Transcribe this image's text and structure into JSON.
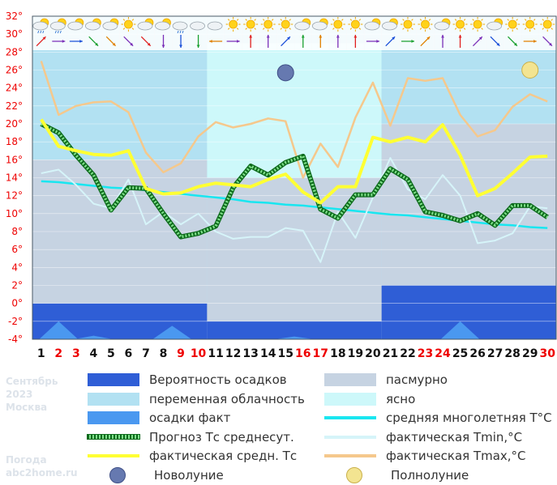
{
  "chart_data": {
    "type": "line",
    "x": [
      1,
      2,
      3,
      4,
      5,
      6,
      7,
      8,
      9,
      10,
      11,
      12,
      13,
      14,
      15,
      16,
      17,
      18,
      19,
      20,
      21,
      22,
      23,
      24,
      25,
      26,
      27,
      28,
      29,
      30
    ],
    "x_red_days": [
      2,
      3,
      9,
      10,
      16,
      17,
      23,
      24,
      30
    ],
    "ylim": [
      -4,
      32
    ],
    "y_ticks": [
      "-4°",
      "-2°",
      "0°",
      "2°",
      "4°",
      "6°",
      "8°",
      "10°",
      "12°",
      "14°",
      "16°",
      "18°",
      "20°",
      "22°",
      "24°",
      "26°",
      "28°",
      "30°",
      "32°"
    ],
    "cloud_bands": [
      {
        "from": 1,
        "to": 10,
        "level_top": 29,
        "kind": "переменная облачность"
      },
      {
        "from": 11,
        "to": 20,
        "level_top": 29,
        "kind": "ясно"
      },
      {
        "from": 21,
        "to": 30,
        "level_top": 29,
        "kind": "переменная облачность"
      }
    ],
    "overcast_bands": [
      {
        "from": 1,
        "to": 10,
        "level_top": 16
      },
      {
        "from": 11,
        "to": 20,
        "level_top": 14
      },
      {
        "from": 21,
        "to": 30,
        "level_top": 20
      }
    ],
    "precip_probability_bands": [
      {
        "from": 1,
        "to": 10,
        "value": 0
      },
      {
        "from": 11,
        "to": 20,
        "value": -2
      },
      {
        "from": 21,
        "to": 30,
        "value": 2
      }
    ],
    "precip_fact_peaks": [
      {
        "day": 2,
        "value": -2.0
      },
      {
        "day": 4,
        "value": -3.6
      },
      {
        "day": 8.5,
        "value": -2.5
      },
      {
        "day": 15.5,
        "value": -3.7
      },
      {
        "day": 25,
        "value": -2.0
      }
    ],
    "series": [
      {
        "name": "средняя многолетняя T°C",
        "color": "#19e6f0",
        "values": [
          13.6,
          13.5,
          13.3,
          13.1,
          12.9,
          12.8,
          12.6,
          12.4,
          12.2,
          12.0,
          11.8,
          11.6,
          11.3,
          11.2,
          11.0,
          10.9,
          10.7,
          10.5,
          10.3,
          10.1,
          9.9,
          9.8,
          9.6,
          9.4,
          9.2,
          9.0,
          8.8,
          8.7,
          8.5,
          8.4
        ]
      },
      {
        "name": "фактическая Tmin,°C",
        "color": "#d6f4f9",
        "values": [
          14.5,
          14.9,
          13.2,
          11.1,
          10.6,
          13.8,
          8.8,
          10.2,
          8.8,
          10.0,
          8.0,
          7.2,
          7.4,
          7.4,
          8.4,
          8.1,
          4.6,
          10.2,
          7.3,
          11.8,
          16.2,
          12.7,
          11.6,
          14.3,
          12.0,
          6.7,
          7.0,
          7.8,
          10.8,
          10.6
        ]
      },
      {
        "name": "фактическая Tmax,°C",
        "color": "#f5c88c",
        "values": [
          27.0,
          21.0,
          22.0,
          22.4,
          22.5,
          21.3,
          16.8,
          14.6,
          15.6,
          18.6,
          20.2,
          19.6,
          20.0,
          20.6,
          20.3,
          14.0,
          17.8,
          15.2,
          20.7,
          24.6,
          19.8,
          25.1,
          24.8,
          25.1,
          21.0,
          18.6,
          19.3,
          21.9,
          23.3,
          22.5
        ]
      },
      {
        "name": "Прогноз Тс среднесут.",
        "color": "#18a830",
        "values": [
          20.0,
          19.0,
          16.5,
          14.3,
          10.4,
          12.9,
          12.8,
          10.0,
          7.4,
          7.8,
          8.6,
          12.9,
          15.3,
          14.3,
          15.7,
          16.4,
          10.5,
          9.5,
          12.1,
          12.1,
          15.0,
          13.8,
          10.2,
          9.8,
          9.2,
          10.0,
          8.7,
          10.9,
          10.9,
          9.6
        ]
      },
      {
        "name": "фактическая средн. Тс",
        "color": "#ffff33",
        "values": [
          20.5,
          17.5,
          17.0,
          16.6,
          16.5,
          17.0,
          12.8,
          12.2,
          12.3,
          13.0,
          13.4,
          13.2,
          13.0,
          13.8,
          14.4,
          12.4,
          11.2,
          13.0,
          13.0,
          18.5,
          18.0,
          18.5,
          18.0,
          19.9,
          16.5,
          12.0,
          12.8,
          14.5,
          16.3,
          16.4
        ]
      }
    ],
    "moon_markers": [
      {
        "day": 15,
        "value": 25.7,
        "kind": "new"
      },
      {
        "day": 29,
        "value": 26.0,
        "kind": "full"
      }
    ],
    "weather_icons": [
      "part-cloud-rain",
      "part-cloud-rain",
      "part-cloud",
      "part-cloud",
      "part-cloud",
      "sun",
      "part-cloud",
      "part-cloud",
      "cloud-rain",
      "cloud",
      "cloud",
      "sun",
      "sun",
      "sun",
      "sun",
      "part-cloud",
      "part-cloud",
      "sun",
      "sun",
      "part-cloud",
      "part-cloud",
      "sun",
      "sun",
      "part-cloud",
      "sun",
      "sun",
      "part-cloud",
      "sun",
      "sun",
      "sun"
    ],
    "wind_arrows": [
      "up-right",
      "right",
      "right",
      "down-right",
      "down-right",
      "down-right",
      "down-right",
      "down",
      "down",
      "down",
      "left",
      "right",
      "up",
      "up",
      "up-right",
      "up",
      "up",
      "up",
      "up",
      "right",
      "up-right",
      "right",
      "up-right",
      "up",
      "up",
      "up-right",
      "down-right",
      "down-right",
      "right",
      "down-right"
    ],
    "colors": {
      "panel_bg": "#b2e1f2",
      "clear_bg": "#cdf8fa",
      "overcast_bg": "#c6d3e2",
      "precip_prob": "#2f5ed6",
      "precip_fact": "#4a98f0",
      "red_day": "#ee0000",
      "axis_text": "#ee0000",
      "frame": "#4a5a66"
    }
  },
  "legend": [
    {
      "label": "Вероятность осадков",
      "swatch": "#2f5ed6",
      "kind": "box"
    },
    {
      "label": "пасмурно",
      "swatch": "#c6d3e2",
      "kind": "box"
    },
    {
      "label": "переменная облачность",
      "swatch": "#b2e1f2",
      "kind": "box"
    },
    {
      "label": "ясно",
      "swatch": "#cdf8fa",
      "kind": "box"
    },
    {
      "label": "осадки факт",
      "swatch": "#4a98f0",
      "kind": "box"
    },
    {
      "label": "средняя многолетняя T°C",
      "swatch": "#19e6f0",
      "kind": "line"
    },
    {
      "label": "Прогноз Тс среднесут.",
      "swatch": "#18a830",
      "kind": "dashed"
    },
    {
      "label": "фактическая Tmin,°C",
      "swatch": "#d6f4f9",
      "kind": "line"
    },
    {
      "label": "фактическая средн. Тс",
      "swatch": "#ffff33",
      "kind": "line"
    },
    {
      "label": "фактическая Tmax,°C",
      "swatch": "#f5c88c",
      "kind": "line"
    },
    {
      "label": "Новолуние",
      "swatch": "#6679b0",
      "kind": "moon"
    },
    {
      "label": "Полнолуние",
      "swatch": "#f3e491",
      "kind": "moon"
    }
  ],
  "caption": {
    "month": "Сентябрь",
    "year": "2023",
    "city": "Москва",
    "site_line1": "Погода",
    "site_line2": "abc2home.ru"
  }
}
